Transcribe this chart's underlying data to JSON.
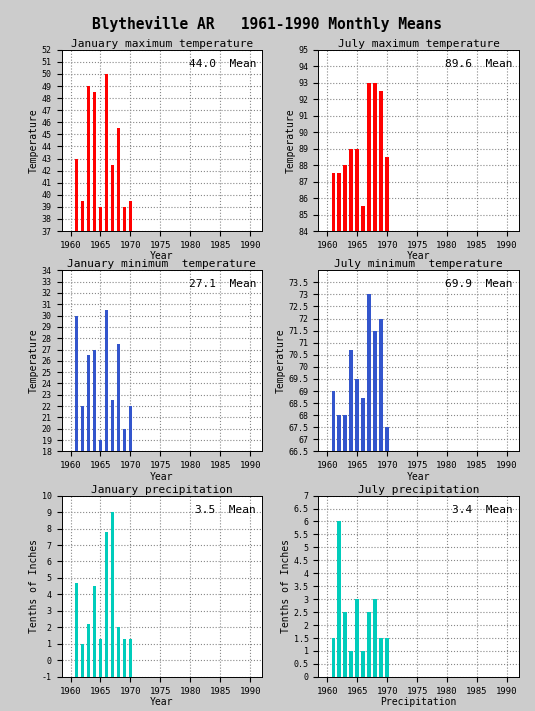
{
  "title": "Blytheville AR   1961-1990 Monthly Means",
  "bg_color": "#cccccc",
  "plot_bg_color": "#ffffff",
  "subplots": [
    {
      "title": "January maximum temperature",
      "ylabel": "Temperature",
      "xlabel": "Year",
      "mean_label": "44.0  Mean",
      "color": "red",
      "ylim": [
        37,
        52
      ],
      "yticks": [
        37,
        38,
        39,
        40,
        41,
        42,
        43,
        44,
        45,
        46,
        47,
        48,
        49,
        50,
        51,
        52
      ],
      "xticks": [
        1960,
        1965,
        1970,
        1975,
        1980,
        1985,
        1990
      ],
      "years": [
        1961,
        1962,
        1963,
        1964,
        1965,
        1966,
        1967,
        1968,
        1969,
        1970
      ],
      "values": [
        43.0,
        39.5,
        49.0,
        48.5,
        39.0,
        50.0,
        42.5,
        45.5,
        39.0,
        39.5
      ]
    },
    {
      "title": "July maximum temperature",
      "ylabel": "Temperature",
      "xlabel": "Year",
      "mean_label": "89.6  Mean",
      "color": "red",
      "ylim": [
        84,
        95
      ],
      "yticks": [
        84,
        85,
        86,
        87,
        88,
        89,
        90,
        91,
        92,
        93,
        94,
        95
      ],
      "xticks": [
        1960,
        1965,
        1970,
        1975,
        1980,
        1985,
        1990
      ],
      "years": [
        1961,
        1962,
        1963,
        1964,
        1965,
        1966,
        1967,
        1968,
        1969,
        1970
      ],
      "values": [
        87.5,
        87.5,
        88.0,
        89.0,
        89.0,
        85.5,
        93.0,
        93.0,
        92.5,
        88.5
      ]
    },
    {
      "title": "January minimum  temperature",
      "ylabel": "Temperature",
      "xlabel": "Year",
      "mean_label": "27.1  Mean",
      "color": "#3355cc",
      "ylim": [
        18,
        34
      ],
      "yticks": [
        18,
        19,
        20,
        21,
        22,
        23,
        24,
        25,
        26,
        27,
        28,
        29,
        30,
        31,
        32,
        33,
        34
      ],
      "xticks": [
        1960,
        1965,
        1970,
        1975,
        1980,
        1985,
        1990
      ],
      "years": [
        1961,
        1962,
        1963,
        1964,
        1965,
        1966,
        1967,
        1968,
        1969,
        1970
      ],
      "values": [
        30.0,
        22.0,
        26.5,
        27.0,
        19.0,
        30.5,
        22.5,
        27.5,
        20.0,
        22.0
      ]
    },
    {
      "title": "July minimum  temperature",
      "ylabel": "Temperature",
      "xlabel": "Year",
      "mean_label": "69.9  Mean",
      "color": "#3355cc",
      "ylim": [
        66.5,
        74
      ],
      "yticks": [
        66.5,
        67,
        67.5,
        68,
        68.5,
        69,
        69.5,
        70,
        70.5,
        71,
        71.5,
        72,
        72.5,
        73,
        73.5
      ],
      "xticks": [
        1960,
        1965,
        1970,
        1975,
        1980,
        1985,
        1990
      ],
      "years": [
        1961,
        1962,
        1963,
        1964,
        1965,
        1966,
        1967,
        1968,
        1969,
        1970
      ],
      "values": [
        69.0,
        68.0,
        68.0,
        70.7,
        69.5,
        68.7,
        73.0,
        71.5,
        72.0,
        67.5
      ]
    },
    {
      "title": "January precipitation",
      "ylabel": "Tenths of Inches",
      "xlabel": "Year",
      "mean_label": "3.5  Mean",
      "color": "#00ccbb",
      "ylim": [
        -1,
        10
      ],
      "yticks": [
        -1,
        0,
        1,
        2,
        3,
        4,
        5,
        6,
        7,
        8,
        9,
        10
      ],
      "xticks": [
        1960,
        1965,
        1970,
        1975,
        1980,
        1985,
        1990
      ],
      "years": [
        1961,
        1962,
        1963,
        1964,
        1965,
        1966,
        1967,
        1968,
        1969,
        1970
      ],
      "values": [
        4.7,
        1.0,
        2.2,
        4.5,
        1.3,
        7.8,
        9.0,
        2.0,
        1.3,
        1.3
      ]
    },
    {
      "title": "July precipitation",
      "ylabel": "Tenths of Inches",
      "xlabel": "Precipitation",
      "mean_label": "3.4  Mean",
      "color": "#00ccbb",
      "ylim": [
        0,
        7
      ],
      "yticks": [
        0,
        0.5,
        1,
        1.5,
        2,
        2.5,
        3,
        3.5,
        4,
        4.5,
        5,
        5.5,
        6,
        6.5,
        7
      ],
      "xticks": [
        1960,
        1965,
        1970,
        1975,
        1980,
        1985,
        1990
      ],
      "years": [
        1961,
        1962,
        1963,
        1964,
        1965,
        1966,
        1967,
        1968,
        1969,
        1970
      ],
      "values": [
        1.5,
        6.0,
        2.5,
        1.0,
        3.0,
        1.0,
        2.5,
        3.0,
        1.5,
        1.5
      ]
    }
  ]
}
